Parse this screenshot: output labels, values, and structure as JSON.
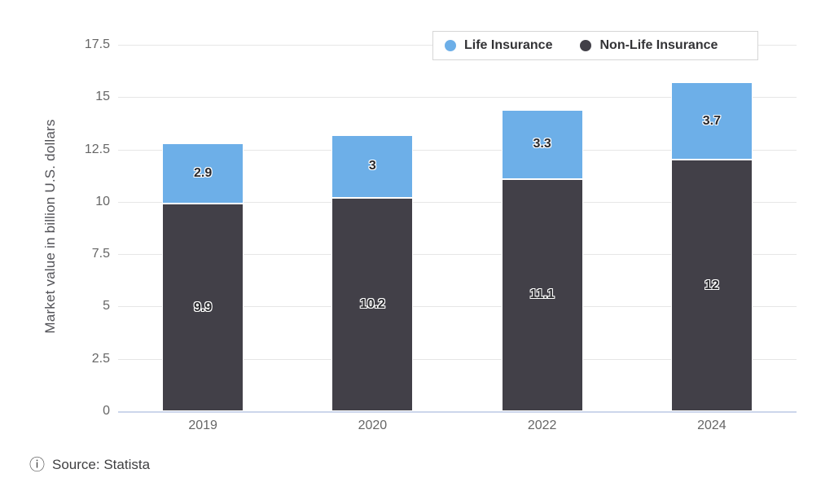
{
  "chart_data": {
    "type": "bar",
    "stacked": true,
    "title": "",
    "categories": [
      "2019",
      "2020",
      "2022",
      "2024"
    ],
    "series": [
      {
        "name": "Life Insurance",
        "color": "#6DAFE8",
        "values": [
          2.9,
          3,
          3.3,
          3.7
        ],
        "labels": [
          "2.9",
          "3",
          "3.3",
          "3.7"
        ]
      },
      {
        "name": "Non-Life Insurance",
        "color": "#424048",
        "values": [
          9.9,
          10.2,
          11.1,
          12
        ],
        "labels": [
          "9.9",
          "10.2",
          "11.1",
          "12"
        ]
      }
    ],
    "xlabel": "",
    "ylabel": "Market value in billion U.S. dollars",
    "ylim": [
      0,
      17.5
    ],
    "yticks": [
      0,
      2.5,
      5,
      7.5,
      10,
      12.5,
      15,
      17.5
    ],
    "ytick_labels": [
      "0",
      "2.5",
      "5",
      "7.5",
      "10",
      "12.5",
      "15",
      "17.5"
    ],
    "grid": true,
    "legend_position": "top-right"
  },
  "legend": {
    "items": [
      {
        "label": "Life Insurance",
        "color": "#6DAFE8"
      },
      {
        "label": "Non-Life Insurance",
        "color": "#424048"
      }
    ]
  },
  "footer": {
    "info_icon": "ⓘ",
    "source_text": "Source: Statista"
  },
  "colors": {
    "life_insurance": "#6DAFE8",
    "non_life_insurance": "#424048",
    "gridline": "#e6e6e6",
    "axis_line": "#ccd6eb",
    "tick_label": "#666666",
    "data_label": "#28282c",
    "background": "#ffffff"
  }
}
